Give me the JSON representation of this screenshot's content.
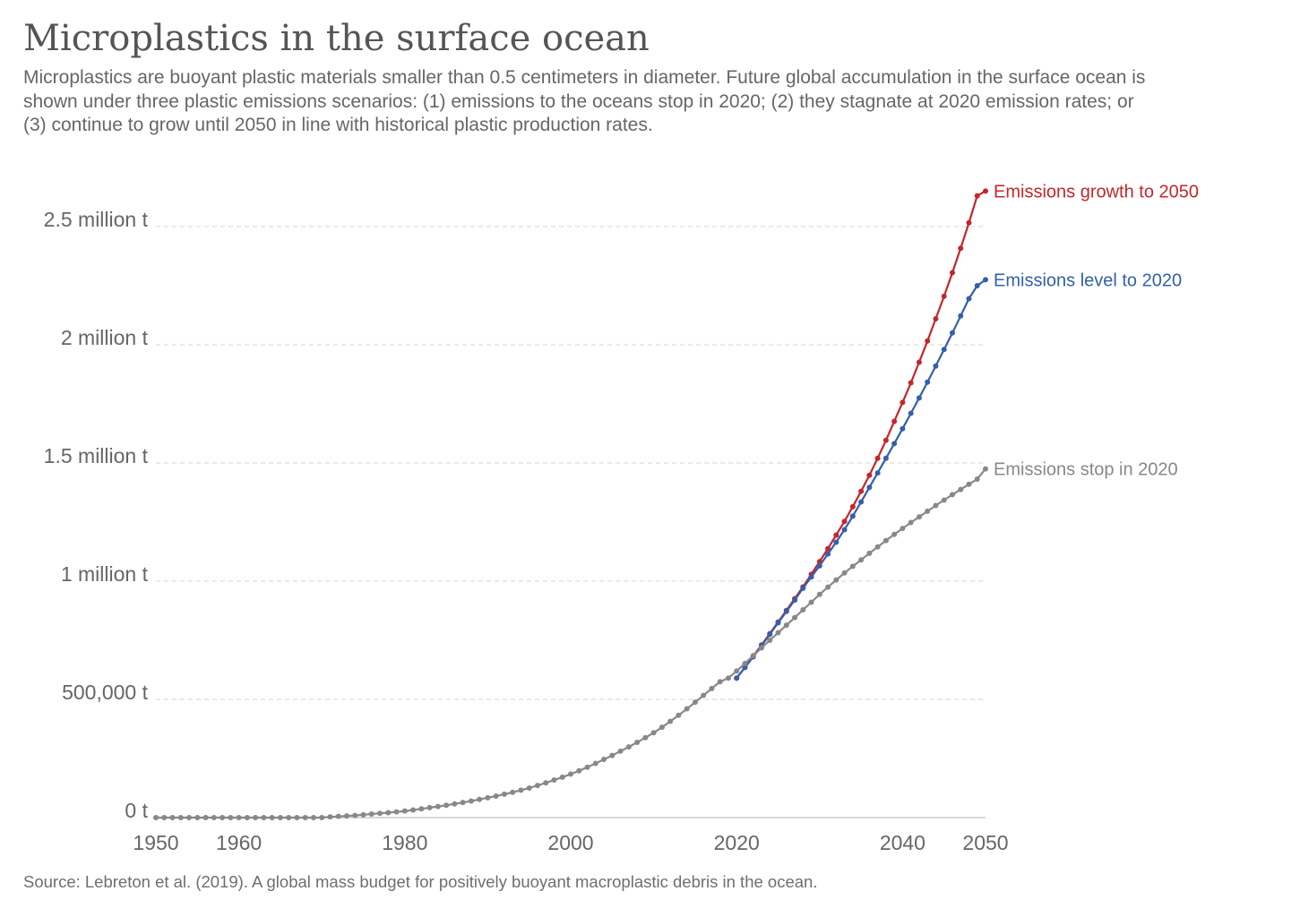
{
  "title": "Microplastics in the surface ocean",
  "subtitle": "Microplastics are buoyant plastic materials smaller than 0.5 centimeters in diameter. Future global accumulation in the surface ocean is shown under three plastic emissions scenarios: (1) emissions to the oceans stop in 2020; (2) they stagnate at 2020 emission rates; or (3) continue to grow until 2050 in line with historical plastic production rates.",
  "source": "Source: Lebreton et al. (2019). A global mass budget for positively buoyant macroplastic debris in the ocean.",
  "chart_data": {
    "type": "line",
    "xlim": [
      1950,
      2050
    ],
    "ylim": [
      0,
      2500000
    ],
    "x_ticks": [
      {
        "value": 1950,
        "label": "1950"
      },
      {
        "value": 1960,
        "label": "1960"
      },
      {
        "value": 1980,
        "label": "1980"
      },
      {
        "value": 2000,
        "label": "2000"
      },
      {
        "value": 2020,
        "label": "2020"
      },
      {
        "value": 2040,
        "label": "2040"
      },
      {
        "value": 2050,
        "label": "2050"
      }
    ],
    "y_ticks": [
      {
        "value": 0,
        "label": "0 t"
      },
      {
        "value": 500000,
        "label": "500,000 t"
      },
      {
        "value": 1000000,
        "label": "1 million t"
      },
      {
        "value": 1500000,
        "label": "1.5 million t"
      },
      {
        "value": 2000000,
        "label": "2 million t"
      },
      {
        "value": 2500000,
        "label": "2.5 million t"
      }
    ],
    "grid": "horizontal dashed",
    "legend": "inline labels at line ends",
    "series": [
      {
        "name": "Emissions growth to 2050",
        "color": "#c4262b",
        "x": [
          2020,
          2021,
          2022,
          2023,
          2024,
          2025,
          2026,
          2027,
          2028,
          2029,
          2030,
          2031,
          2032,
          2033,
          2034,
          2035,
          2036,
          2037,
          2038,
          2039,
          2040,
          2041,
          2042,
          2043,
          2044,
          2045,
          2046,
          2047,
          2048,
          2049,
          2050
        ],
        "values": [
          590000,
          636000,
          683000,
          730000,
          778000,
          827000,
          876000,
          926000,
          976000,
          1029000,
          1083000,
          1138000,
          1195000,
          1253000,
          1315000,
          1380000,
          1448000,
          1520000,
          1596000,
          1676000,
          1756000,
          1839000,
          1926000,
          2016000,
          2110000,
          2205000,
          2305000,
          2408000,
          2516000,
          2630000,
          2650000
        ]
      },
      {
        "name": "Emissions level to 2020",
        "color": "#3360a9",
        "x": [
          2020,
          2021,
          2022,
          2023,
          2024,
          2025,
          2026,
          2027,
          2028,
          2029,
          2030,
          2031,
          2032,
          2033,
          2034,
          2035,
          2036,
          2037,
          2038,
          2039,
          2040,
          2041,
          2042,
          2043,
          2044,
          2045,
          2046,
          2047,
          2048,
          2049,
          2050
        ],
        "values": [
          590000,
          635000,
          680000,
          727000,
          775000,
          824000,
          872000,
          920000,
          970000,
          1018000,
          1065000,
          1115000,
          1165000,
          1218000,
          1275000,
          1335000,
          1397000,
          1458000,
          1520000,
          1582000,
          1645000,
          1710000,
          1775000,
          1842000,
          1910000,
          1980000,
          2050000,
          2122000,
          2195000,
          2250000,
          2275000
        ]
      },
      {
        "name": "Emissions stop in 2020",
        "color": "#888888",
        "x": [
          1950,
          1951,
          1952,
          1953,
          1954,
          1955,
          1956,
          1957,
          1958,
          1959,
          1960,
          1961,
          1962,
          1963,
          1964,
          1965,
          1966,
          1967,
          1968,
          1969,
          1970,
          1971,
          1972,
          1973,
          1974,
          1975,
          1976,
          1977,
          1978,
          1979,
          1980,
          1981,
          1982,
          1983,
          1984,
          1985,
          1986,
          1987,
          1988,
          1989,
          1990,
          1991,
          1992,
          1993,
          1994,
          1995,
          1996,
          1997,
          1998,
          1999,
          2000,
          2001,
          2002,
          2003,
          2004,
          2005,
          2006,
          2007,
          2008,
          2009,
          2010,
          2011,
          2012,
          2013,
          2014,
          2015,
          2016,
          2017,
          2018,
          2019,
          2020,
          2021,
          2022,
          2023,
          2024,
          2025,
          2026,
          2027,
          2028,
          2029,
          2030,
          2031,
          2032,
          2033,
          2034,
          2035,
          2036,
          2037,
          2038,
          2039,
          2040,
          2041,
          2042,
          2043,
          2044,
          2045,
          2046,
          2047,
          2048,
          2049,
          2050
        ],
        "values": [
          0,
          0,
          0,
          0,
          0,
          0,
          0,
          0,
          0,
          0,
          0,
          0,
          0,
          0,
          0,
          0,
          0,
          0,
          0,
          0,
          0,
          3000,
          5000,
          7000,
          9000,
          12000,
          15000,
          18000,
          21000,
          24000,
          28000,
          32000,
          37000,
          42000,
          47000,
          52000,
          58000,
          64000,
          70000,
          77000,
          84000,
          91000,
          99000,
          107000,
          116000,
          125000,
          136000,
          147000,
          159000,
          171000,
          184000,
          198000,
          213000,
          229000,
          246000,
          263000,
          281000,
          299000,
          318000,
          338000,
          359000,
          382000,
          407000,
          433000,
          460000,
          488000,
          517000,
          546000,
          575000,
          590000,
          620000,
          652000,
          685000,
          718000,
          750000,
          782000,
          814000,
          846000,
          879000,
          911000,
          944000,
          975000,
          1005000,
          1035000,
          1063000,
          1090000,
          1118000,
          1145000,
          1172000,
          1198000,
          1223000,
          1248000,
          1272000,
          1296000,
          1320000,
          1343000,
          1366000,
          1388000,
          1410000,
          1432000,
          1475000
        ]
      }
    ]
  }
}
